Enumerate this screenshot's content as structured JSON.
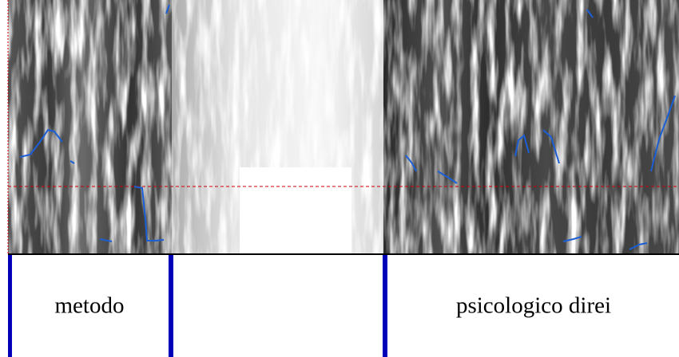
{
  "tier": {
    "intervals": [
      {
        "label": "metodo"
      },
      {
        "label": "psicologico direi"
      }
    ]
  }
}
